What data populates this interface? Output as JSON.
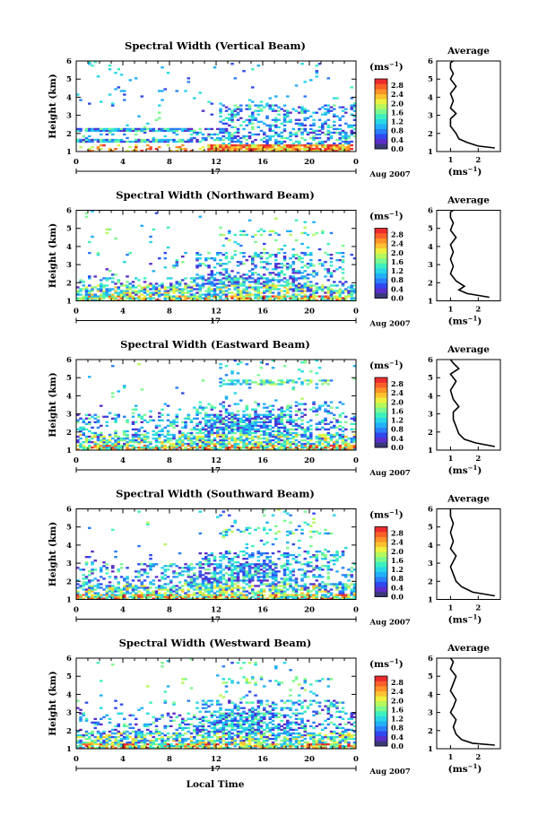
{
  "colorbar": {
    "unit": "(ms",
    "unit_sup": "−1",
    "unit_close": ")",
    "ticks": [
      "2.8",
      "2.4",
      "2.0",
      "1.6",
      "1.2",
      "0.8",
      "0.4",
      "0.0"
    ],
    "colors": [
      "#3a3a78",
      "#5a2ec8",
      "#3048ee",
      "#2a7ef8",
      "#22b0f6",
      "#28d6e6",
      "#3ef0be",
      "#7cf890",
      "#b6f85c",
      "#eef040",
      "#fcc230",
      "#fc9228",
      "#f8602a",
      "#ec2c2c"
    ]
  },
  "avg_title": "Average",
  "avg_xlabel": "(ms",
  "avg_xlabel_sup": "−1",
  "avg_xlabel_close": ")",
  "time_ticks": [
    "0",
    "4",
    "8",
    "12",
    "16",
    "20",
    "0"
  ],
  "date_label": "17",
  "month_label": "Aug 2007",
  "height_label": "Height (km)",
  "height_ticks": [
    "1",
    "2",
    "3",
    "4",
    "5",
    "6"
  ],
  "xlabel": "Local Time",
  "panels": [
    {
      "title": "Spectral Width (Vertical Beam)",
      "cb_ticks": [
        "2.8",
        "2.4",
        "2.0",
        "1.6",
        "1.2",
        "0.8",
        "0.4",
        "0.0"
      ],
      "avg_xticks": [
        "1",
        "2"
      ]
    },
    {
      "title": "Spectral Width (Northward Beam)",
      "cb_ticks": [
        "2.8",
        "2.4",
        "2.0",
        "1.6",
        "1.2",
        "0.8",
        "0.4",
        "0.0"
      ],
      "avg_xticks": [
        "1",
        "2"
      ]
    },
    {
      "title": "Spectral Width (Eastward Beam)",
      "cb_ticks": [
        "2.8",
        "2.4",
        "2.0",
        "1.6",
        "1.2",
        "0.8",
        "0.4",
        "0.0"
      ],
      "avg_xticks": [
        "1",
        "2"
      ]
    },
    {
      "title": "Spectral Width (Southward Beam)",
      "cb_ticks": [
        "2.8",
        "2.4",
        "2.0",
        "1.6",
        "1.2",
        "0.8",
        "0.4",
        "0.0"
      ],
      "avg_xticks": [
        "1",
        "2"
      ]
    },
    {
      "title": "Spectral Width (Westward Beam)",
      "cb_ticks": [
        "2.8",
        "2.4",
        "2.0",
        "1.6",
        "1.2",
        "0.8",
        "0.4",
        "0.0"
      ],
      "avg_xticks": [
        "1",
        "2"
      ]
    }
  ],
  "chart_data": [
    {
      "type": "heatmap",
      "title": "Spectral Width (Vertical Beam)",
      "xlabel": "Local Time",
      "ylabel": "Height (km)",
      "xlim": [
        0,
        24
      ],
      "ylim": [
        1,
        6
      ],
      "clim": [
        0,
        2.8
      ],
      "beam": "vertical",
      "avg_profile": {
        "title": "Average",
        "xlim": [
          0.5,
          2.8
        ],
        "ylim": [
          1,
          6
        ],
        "x": [
          2.6,
          2.0,
          1.6,
          1.3,
          1.2,
          1.0,
          1.0,
          1.2,
          1.0,
          1.1,
          1.0,
          1.2,
          1.0,
          1.1,
          1.0,
          1.0,
          1.1
        ],
        "y": [
          1.2,
          1.3,
          1.5,
          1.7,
          2.0,
          2.4,
          2.8,
          3.1,
          3.4,
          3.8,
          4.2,
          4.6,
          5.0,
          5.3,
          5.6,
          5.9,
          6.0
        ]
      }
    },
    {
      "type": "heatmap",
      "title": "Spectral Width (Northward Beam)",
      "xlabel": "Local Time",
      "ylabel": "Height (km)",
      "xlim": [
        0,
        24
      ],
      "ylim": [
        1,
        6
      ],
      "clim": [
        0,
        2.8
      ],
      "beam": "north",
      "avg_profile": {
        "title": "Average",
        "xlim": [
          0.5,
          2.8
        ],
        "ylim": [
          1,
          6
        ],
        "x": [
          2.4,
          1.6,
          1.3,
          1.5,
          1.2,
          1.0,
          1.1,
          1.0,
          1.1,
          1.0,
          1.2,
          1.0,
          1.1,
          1.0,
          1.0,
          1.1
        ],
        "y": [
          1.2,
          1.4,
          1.6,
          1.8,
          2.1,
          2.5,
          2.9,
          3.3,
          3.7,
          4.1,
          4.5,
          4.9,
          5.3,
          5.6,
          5.9,
          6.0
        ]
      }
    },
    {
      "type": "heatmap",
      "title": "Spectral Width (Eastward Beam)",
      "xlabel": "Local Time",
      "ylabel": "Height (km)",
      "xlim": [
        0,
        24
      ],
      "ylim": [
        1,
        6
      ],
      "clim": [
        0,
        2.8
      ],
      "beam": "east",
      "avg_profile": {
        "title": "Average",
        "xlim": [
          0.5,
          2.8
        ],
        "ylim": [
          1,
          6
        ],
        "x": [
          2.6,
          1.9,
          1.5,
          1.3,
          1.2,
          1.1,
          1.1,
          1.3,
          1.1,
          1.0,
          1.2,
          1.0,
          1.3,
          1.1,
          1.0
        ],
        "y": [
          1.2,
          1.4,
          1.6,
          1.9,
          2.3,
          2.7,
          3.1,
          3.4,
          3.8,
          4.3,
          4.8,
          5.2,
          5.5,
          5.8,
          6.0
        ]
      }
    },
    {
      "type": "heatmap",
      "title": "Spectral Width (Southward Beam)",
      "xlabel": "Local Time",
      "ylabel": "Height (km)",
      "xlim": [
        0,
        24
      ],
      "ylim": [
        1,
        6
      ],
      "clim": [
        0,
        2.8
      ],
      "beam": "south",
      "avg_profile": {
        "title": "Average",
        "xlim": [
          0.5,
          2.8
        ],
        "ylim": [
          1,
          6
        ],
        "x": [
          2.6,
          1.8,
          1.4,
          1.2,
          1.1,
          1.0,
          1.1,
          1.2,
          1.0,
          1.1,
          1.0,
          1.1,
          1.0,
          1.0
        ],
        "y": [
          1.2,
          1.4,
          1.7,
          2.0,
          2.4,
          2.8,
          3.1,
          3.4,
          3.8,
          4.2,
          4.7,
          5.2,
          5.6,
          6.0
        ]
      }
    },
    {
      "type": "heatmap",
      "title": "Spectral Width (Westward Beam)",
      "xlabel": "Local Time",
      "ylabel": "Height (km)",
      "xlim": [
        0,
        24
      ],
      "ylim": [
        1,
        6
      ],
      "clim": [
        0,
        2.8
      ],
      "beam": "west",
      "avg_profile": {
        "title": "Average",
        "xlim": [
          0.5,
          2.8
        ],
        "ylim": [
          1,
          6
        ],
        "x": [
          2.6,
          1.8,
          1.4,
          1.2,
          1.1,
          1.2,
          1.0,
          1.1,
          1.2,
          1.0,
          1.1,
          1.2,
          1.0,
          1.1,
          1.0
        ],
        "y": [
          1.2,
          1.3,
          1.5,
          1.8,
          2.2,
          2.6,
          3.0,
          3.3,
          3.7,
          4.2,
          4.6,
          5.0,
          5.4,
          5.8,
          6.0
        ]
      }
    }
  ]
}
